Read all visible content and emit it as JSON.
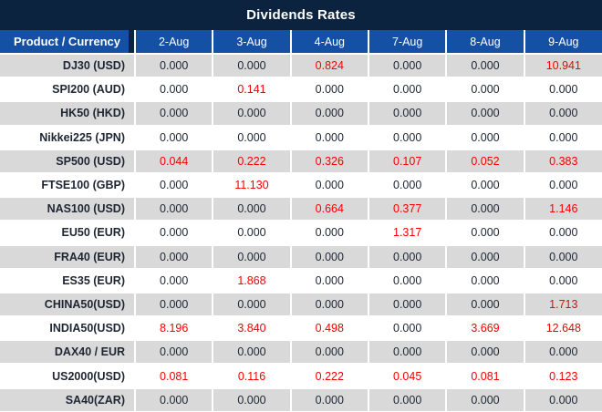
{
  "title": "Dividends Rates",
  "colors": {
    "title_bar_bg": "#0C2340",
    "header_bg": "#1451A4",
    "row_alt_bg": "#D9D9D9",
    "row_bg": "#FFFFFF",
    "grid_line": "#FFFFFF",
    "text_dark": "#1E2633",
    "value_highlight_red": "#F80000",
    "header_text": "#FFFFFF"
  },
  "chart_data": {
    "type": "table",
    "title": "Dividends Rates",
    "columns": [
      "Product / Currency",
      "2-Aug",
      "3-Aug",
      "4-Aug",
      "7-Aug",
      "8-Aug",
      "9-Aug"
    ],
    "rows": [
      {
        "product": "DJ30 (USD)",
        "values": [
          0.0,
          0.0,
          0.824,
          0.0,
          0.0,
          10.941
        ]
      },
      {
        "product": "SPI200 (AUD)",
        "values": [
          0.0,
          0.141,
          0.0,
          0.0,
          0.0,
          0.0
        ]
      },
      {
        "product": "HK50 (HKD)",
        "values": [
          0.0,
          0.0,
          0.0,
          0.0,
          0.0,
          0.0
        ]
      },
      {
        "product": "Nikkei225 (JPN)",
        "values": [
          0.0,
          0.0,
          0.0,
          0.0,
          0.0,
          0.0
        ]
      },
      {
        "product": "SP500 (USD)",
        "values": [
          0.044,
          0.222,
          0.326,
          0.107,
          0.052,
          0.383
        ]
      },
      {
        "product": "FTSE100 (GBP)",
        "values": [
          0.0,
          11.13,
          0.0,
          0.0,
          0.0,
          0.0
        ]
      },
      {
        "product": "NAS100 (USD)",
        "values": [
          0.0,
          0.0,
          0.664,
          0.377,
          0.0,
          1.146
        ]
      },
      {
        "product": "EU50 (EUR)",
        "values": [
          0.0,
          0.0,
          0.0,
          1.317,
          0.0,
          0.0
        ]
      },
      {
        "product": "FRA40 (EUR)",
        "values": [
          0.0,
          0.0,
          0.0,
          0.0,
          0.0,
          0.0
        ]
      },
      {
        "product": "ES35 (EUR)",
        "values": [
          0.0,
          1.868,
          0.0,
          0.0,
          0.0,
          0.0
        ]
      },
      {
        "product": "CHINA50(USD)",
        "values": [
          0.0,
          0.0,
          0.0,
          0.0,
          0.0,
          1.713
        ]
      },
      {
        "product": "INDIA50(USD)",
        "values": [
          8.196,
          3.84,
          0.498,
          0.0,
          3.669,
          12.648
        ]
      },
      {
        "product": "DAX40 / EUR",
        "values": [
          0.0,
          0.0,
          0.0,
          0.0,
          0.0,
          0.0
        ]
      },
      {
        "product": "US2000(USD)",
        "values": [
          0.081,
          0.116,
          0.222,
          0.045,
          0.081,
          0.123
        ]
      },
      {
        "product": "SA40(ZAR)",
        "values": [
          0.0,
          0.0,
          0.0,
          0.0,
          0.0,
          0.0
        ]
      }
    ],
    "value_decimals": 3,
    "highlight_rule": "nonzero values rendered in red",
    "layout": {
      "alternating_rows": true,
      "first_row_shade": "gray",
      "first_column_align": "right",
      "value_align": "center",
      "grid": true,
      "legend": "none"
    }
  }
}
